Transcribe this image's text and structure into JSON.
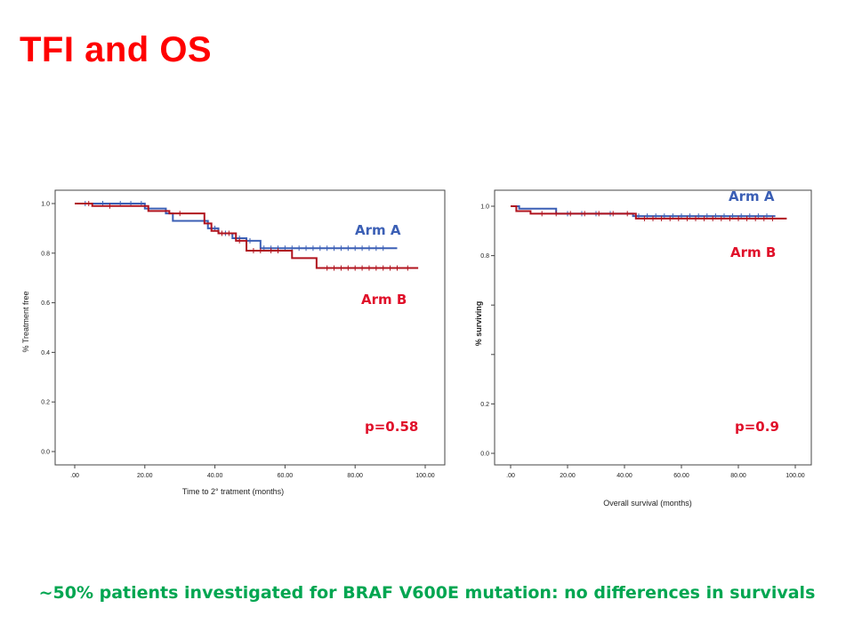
{
  "slide": {
    "title": "TFI and OS",
    "footer": "~50% patients investigated for BRAF V600E mutation: no differences in survivals"
  },
  "colors": {
    "arm_a": "#3b5fb5",
    "arm_b": "#b0131e",
    "accent": "#ff0000",
    "footer": "#00a651"
  },
  "chart_data": [
    {
      "type": "line",
      "subtype": "kaplan-meier",
      "xlabel": "Time to 2° tratment (months)",
      "ylabel": "% Treatment  free",
      "xlim": [
        0,
        100
      ],
      "ylim": [
        0,
        1
      ],
      "x_ticks": [
        ".00",
        "20.00",
        "40.00",
        "60.00",
        "80.00",
        "100.00"
      ],
      "y_ticks": [
        "0.0",
        "0.2",
        "0.4",
        "0.6",
        "0.8",
        "1.0"
      ],
      "annotation": "p=0.58",
      "series": [
        {
          "name": "Arm A",
          "steps": [
            [
              0,
              1.0
            ],
            [
              18,
              1.0
            ],
            [
              20,
              0.98
            ],
            [
              26,
              0.96
            ],
            [
              28,
              0.93
            ],
            [
              37,
              0.93
            ],
            [
              38,
              0.9
            ],
            [
              41,
              0.88
            ],
            [
              45,
              0.86
            ],
            [
              49,
              0.85
            ],
            [
              53,
              0.82
            ],
            [
              92,
              0.82
            ]
          ],
          "censored": [
            3,
            8,
            13,
            16,
            19,
            40,
            43,
            47,
            50,
            54,
            56,
            58,
            60,
            62,
            64,
            66,
            68,
            70,
            72,
            74,
            76,
            78,
            80,
            82,
            84,
            86,
            88
          ]
        },
        {
          "name": "Arm B",
          "steps": [
            [
              0,
              1.0
            ],
            [
              5,
              0.99
            ],
            [
              14,
              0.99
            ],
            [
              21,
              0.97
            ],
            [
              27,
              0.96
            ],
            [
              35,
              0.96
            ],
            [
              37,
              0.92
            ],
            [
              39,
              0.89
            ],
            [
              41,
              0.88
            ],
            [
              46,
              0.85
            ],
            [
              49,
              0.81
            ],
            [
              61,
              0.81
            ],
            [
              62,
              0.78
            ],
            [
              68,
              0.78
            ],
            [
              69,
              0.74
            ],
            [
              98,
              0.74
            ]
          ],
          "censored": [
            4,
            10,
            30,
            42,
            44,
            47,
            51,
            53,
            56,
            58,
            72,
            74,
            76,
            78,
            80,
            82,
            84,
            86,
            88,
            90,
            92,
            95
          ]
        }
      ]
    },
    {
      "type": "line",
      "subtype": "kaplan-meier",
      "xlabel": "Overall survival (months)",
      "ylabel": "%  surviving",
      "xlim": [
        0,
        100
      ],
      "ylim": [
        0,
        1
      ],
      "x_ticks": [
        ".00",
        "20.00",
        "40.00",
        "60.00",
        "80.00",
        "100.00"
      ],
      "y_ticks": [
        "0.0",
        "0.2",
        "",
        "",
        "0.8",
        "1.0"
      ],
      "annotation": "p=0.9",
      "series": [
        {
          "name": "Arm A",
          "steps": [
            [
              0,
              1.0
            ],
            [
              3,
              0.99
            ],
            [
              12,
              0.99
            ],
            [
              16,
              0.97
            ],
            [
              42,
              0.97
            ],
            [
              43,
              0.96
            ],
            [
              93,
              0.96
            ]
          ],
          "censored": [
            20,
            25,
            30,
            35,
            45,
            48,
            51,
            54,
            57,
            60,
            63,
            66,
            69,
            72,
            75,
            78,
            81,
            84,
            87,
            90
          ]
        },
        {
          "name": "Arm B",
          "steps": [
            [
              0,
              1.0
            ],
            [
              2,
              0.98
            ],
            [
              6,
              0.98
            ],
            [
              7,
              0.97
            ],
            [
              43,
              0.97
            ],
            [
              44,
              0.95
            ],
            [
              97,
              0.95
            ]
          ],
          "censored": [
            11,
            16,
            21,
            26,
            31,
            36,
            41,
            47,
            50,
            53,
            56,
            59,
            62,
            65,
            68,
            71,
            74,
            77,
            80,
            83,
            86,
            89,
            92
          ]
        }
      ]
    }
  ]
}
